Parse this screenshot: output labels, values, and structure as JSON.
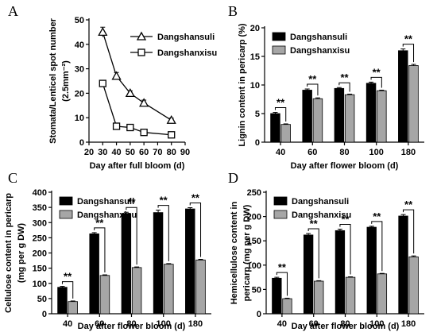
{
  "chart_data": [
    {
      "panel": "A",
      "type": "line",
      "xlabel": "Day after full bloom (d)",
      "ylabel_line1": "Stomata/Lenticel spot number",
      "ylabel_line2": "(2.5mm⁻²)",
      "xlim": [
        20,
        90
      ],
      "xticks": [
        20,
        30,
        40,
        50,
        60,
        70,
        80,
        90
      ],
      "ylim": [
        0,
        50
      ],
      "yticks": [
        0,
        10,
        20,
        30,
        40,
        50
      ],
      "grid": false,
      "legend_position": "top-right",
      "series": [
        {
          "name": "Dangshansuli",
          "marker": "triangle",
          "x": [
            30,
            40,
            50,
            60,
            80
          ],
          "y": [
            45,
            27,
            20,
            16,
            9
          ],
          "err": [
            2,
            1.5,
            1,
            1.2,
            0.8
          ]
        },
        {
          "name": "Dangshanxisu",
          "marker": "square",
          "x": [
            30,
            40,
            50,
            60,
            80
          ],
          "y": [
            24,
            6.5,
            6,
            4,
            3
          ],
          "err": [
            0.8,
            0.4,
            0.4,
            0.4,
            0.3
          ]
        }
      ]
    },
    {
      "panel": "B",
      "type": "bar",
      "xlabel": "Day after flower bloom (d)",
      "ylabel": "Lignin content in pericarp (%)",
      "categories": [
        "40",
        "60",
        "80",
        "100",
        "180"
      ],
      "ylim": [
        0,
        20
      ],
      "yticks": [
        0,
        5,
        10,
        15,
        20
      ],
      "grid": false,
      "legend_position": "top-left",
      "significance": "**",
      "series": [
        {
          "name": "Dangshansuli",
          "color": "#000000",
          "values": [
            5.0,
            9.1,
            9.4,
            10.3,
            16.0
          ],
          "err": [
            0.2,
            0.2,
            0.15,
            0.2,
            0.3
          ]
        },
        {
          "name": "Dangshanxisu",
          "color": "#a6a6a6",
          "values": [
            3.1,
            7.6,
            8.3,
            9.0,
            13.4
          ],
          "err": [
            0.1,
            0.15,
            0.1,
            0.1,
            0.2
          ]
        }
      ]
    },
    {
      "panel": "C",
      "type": "bar",
      "xlabel": "Day after flower bloom (d)",
      "ylabel_line1": "Cellulose content in pericarp",
      "ylabel_line2": "(mg per g DW)",
      "categories": [
        "40",
        "60",
        "80",
        "100",
        "180"
      ],
      "ylim": [
        0,
        400
      ],
      "yticks": [
        0,
        50,
        100,
        150,
        200,
        250,
        300,
        350,
        400
      ],
      "grid": false,
      "legend_position": "top-left",
      "significance": "**",
      "series": [
        {
          "name": "Dangshansuli",
          "color": "#000000",
          "values": [
            87,
            263,
            330,
            333,
            345
          ],
          "err": [
            3,
            4,
            4,
            8,
            4
          ]
        },
        {
          "name": "Dangshanxisu",
          "color": "#a6a6a6",
          "values": [
            40,
            126,
            152,
            163,
            177
          ],
          "err": [
            2,
            2,
            2,
            2,
            2
          ]
        }
      ]
    },
    {
      "panel": "D",
      "type": "bar",
      "xlabel": "Day after flower bloom (d)",
      "ylabel_line1": "Hemicellulose content in",
      "ylabel_line2": "pericarp (mg per g DW)",
      "categories": [
        "40",
        "60",
        "80",
        "100",
        "180"
      ],
      "ylim": [
        0,
        250
      ],
      "yticks": [
        0,
        50,
        100,
        150,
        200,
        250
      ],
      "grid": false,
      "legend_position": "top-left",
      "significance": "**",
      "series": [
        {
          "name": "Dangshansuli",
          "color": "#000000",
          "values": [
            73,
            162,
            171,
            178,
            201
          ],
          "err": [
            2,
            3,
            3,
            2,
            3
          ]
        },
        {
          "name": "Dangshanxisu",
          "color": "#a6a6a6",
          "values": [
            31,
            67,
            75,
            82,
            117
          ],
          "err": [
            1,
            1,
            1,
            1,
            2
          ]
        }
      ]
    }
  ]
}
